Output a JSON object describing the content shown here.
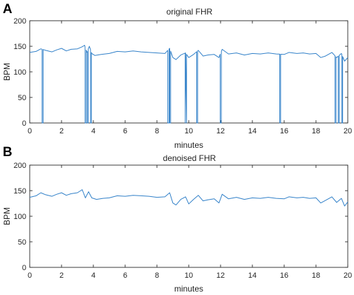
{
  "colors": {
    "series": "#2f7fc8",
    "axes": "#262626",
    "background": "#ffffff"
  },
  "chart_data": [
    {
      "type": "line",
      "panel": "A",
      "title": "original FHR",
      "xlabel": "minutes",
      "ylabel": "BPM",
      "xlim": [
        0,
        20
      ],
      "ylim": [
        0,
        200
      ],
      "xticks": [
        0,
        2,
        4,
        6,
        8,
        10,
        12,
        14,
        16,
        18,
        20
      ],
      "yticks": [
        0,
        50,
        100,
        150,
        200
      ],
      "baseline": [
        [
          0,
          138
        ],
        [
          0.4,
          140
        ],
        [
          0.7,
          145
        ],
        [
          1.0,
          142
        ],
        [
          1.4,
          139
        ],
        [
          1.7,
          143
        ],
        [
          2.0,
          146
        ],
        [
          2.3,
          141
        ],
        [
          2.6,
          144
        ],
        [
          3.0,
          145
        ],
        [
          3.3,
          149
        ],
        [
          3.45,
          152
        ],
        [
          3.6,
          138
        ],
        [
          3.75,
          150
        ],
        [
          3.9,
          136
        ],
        [
          4.1,
          132
        ],
        [
          4.5,
          134
        ],
        [
          5.0,
          136
        ],
        [
          5.5,
          140
        ],
        [
          6.0,
          139
        ],
        [
          6.5,
          141
        ],
        [
          7.0,
          139
        ],
        [
          7.5,
          138
        ],
        [
          8.0,
          137
        ],
        [
          8.5,
          136
        ],
        [
          8.8,
          146
        ],
        [
          9.0,
          128
        ],
        [
          9.2,
          124
        ],
        [
          9.5,
          133
        ],
        [
          9.8,
          137
        ],
        [
          10.0,
          128
        ],
        [
          10.3,
          134
        ],
        [
          10.6,
          142
        ],
        [
          10.9,
          131
        ],
        [
          11.2,
          133
        ],
        [
          11.6,
          134
        ],
        [
          11.9,
          128
        ],
        [
          12.1,
          144
        ],
        [
          12.5,
          135
        ],
        [
          13.0,
          137
        ],
        [
          13.5,
          133
        ],
        [
          14.0,
          136
        ],
        [
          14.5,
          135
        ],
        [
          15.0,
          137
        ],
        [
          15.5,
          135
        ],
        [
          16.0,
          134
        ],
        [
          16.3,
          138
        ],
        [
          16.8,
          136
        ],
        [
          17.2,
          137
        ],
        [
          17.6,
          135
        ],
        [
          18.0,
          136
        ],
        [
          18.3,
          128
        ],
        [
          18.6,
          131
        ],
        [
          19.0,
          138
        ],
        [
          19.3,
          128
        ],
        [
          19.6,
          136
        ],
        [
          19.8,
          121
        ],
        [
          20.0,
          128
        ]
      ],
      "dropouts": [
        {
          "start": 0.78,
          "end": 0.84,
          "value": 0
        },
        {
          "start": 3.48,
          "end": 3.55,
          "value": 0
        },
        {
          "start": 3.62,
          "end": 3.68,
          "value": 0
        },
        {
          "start": 3.82,
          "end": 3.88,
          "value": 0
        },
        {
          "start": 8.68,
          "end": 8.76,
          "value": 0
        },
        {
          "start": 8.8,
          "end": 8.86,
          "value": 0
        },
        {
          "start": 9.78,
          "end": 9.86,
          "value": 0
        },
        {
          "start": 10.5,
          "end": 10.56,
          "value": 0
        },
        {
          "start": 11.98,
          "end": 12.05,
          "value": 0
        },
        {
          "start": 15.72,
          "end": 15.78,
          "value": 0
        },
        {
          "start": 19.2,
          "end": 19.26,
          "value": 0
        },
        {
          "start": 19.4,
          "end": 19.46,
          "value": 0
        },
        {
          "start": 19.62,
          "end": 19.68,
          "value": 0
        }
      ]
    },
    {
      "type": "line",
      "panel": "B",
      "title": "denoised FHR",
      "xlabel": "minutes",
      "ylabel": "BPM",
      "xlim": [
        0,
        20
      ],
      "ylim": [
        0,
        200
      ],
      "xticks": [
        0,
        2,
        4,
        6,
        8,
        10,
        12,
        14,
        16,
        18,
        20
      ],
      "yticks": [
        0,
        50,
        100,
        150,
        200
      ],
      "baseline": [
        [
          0,
          137
        ],
        [
          0.4,
          140
        ],
        [
          0.7,
          146
        ],
        [
          1.0,
          142
        ],
        [
          1.4,
          139
        ],
        [
          1.7,
          143
        ],
        [
          2.0,
          146
        ],
        [
          2.3,
          141
        ],
        [
          2.6,
          144
        ],
        [
          3.0,
          146
        ],
        [
          3.3,
          152
        ],
        [
          3.5,
          136
        ],
        [
          3.7,
          148
        ],
        [
          3.9,
          136
        ],
        [
          4.2,
          133
        ],
        [
          4.6,
          135
        ],
        [
          5.0,
          136
        ],
        [
          5.5,
          140
        ],
        [
          6.0,
          139
        ],
        [
          6.5,
          141
        ],
        [
          7.0,
          140
        ],
        [
          7.5,
          139
        ],
        [
          8.0,
          137
        ],
        [
          8.5,
          138
        ],
        [
          8.8,
          146
        ],
        [
          9.0,
          126
        ],
        [
          9.2,
          122
        ],
        [
          9.5,
          133
        ],
        [
          9.8,
          138
        ],
        [
          10.0,
          124
        ],
        [
          10.3,
          133
        ],
        [
          10.6,
          141
        ],
        [
          10.9,
          130
        ],
        [
          11.2,
          132
        ],
        [
          11.6,
          134
        ],
        [
          11.9,
          126
        ],
        [
          12.1,
          143
        ],
        [
          12.5,
          134
        ],
        [
          13.0,
          137
        ],
        [
          13.5,
          133
        ],
        [
          14.0,
          136
        ],
        [
          14.5,
          135
        ],
        [
          15.0,
          137
        ],
        [
          15.5,
          135
        ],
        [
          16.0,
          134
        ],
        [
          16.3,
          138
        ],
        [
          16.8,
          136
        ],
        [
          17.2,
          137
        ],
        [
          17.6,
          135
        ],
        [
          18.0,
          136
        ],
        [
          18.3,
          126
        ],
        [
          18.6,
          131
        ],
        [
          19.0,
          138
        ],
        [
          19.3,
          127
        ],
        [
          19.6,
          135
        ],
        [
          19.8,
          120
        ],
        [
          20.0,
          128
        ]
      ]
    }
  ]
}
